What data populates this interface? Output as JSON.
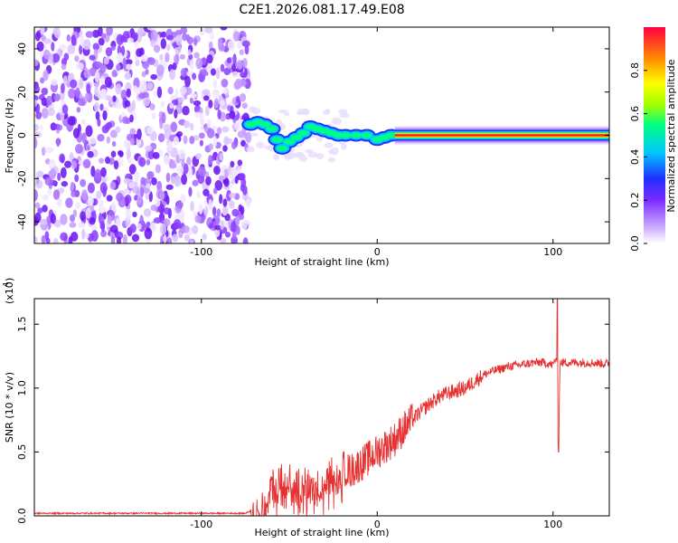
{
  "title": "C2E1.2026.081.17.49.E08",
  "spectrogram": {
    "xlabel": "Height of straight line (km)",
    "ylabel": "Frequency (Hz)",
    "xlim": [
      -195,
      132
    ],
    "ylim": [
      -50,
      50
    ],
    "x_ticks": [
      -100,
      0,
      100
    ],
    "y_ticks": [
      -40,
      -20,
      0,
      20,
      40
    ],
    "noise_region_x": [
      -195,
      -73
    ],
    "ridge_start_x": -73,
    "ridge_freq_hz": 0,
    "colorbar": {
      "label": "Normalized spectral amplitude",
      "ticks": [
        0.0,
        0.2,
        0.4,
        0.6,
        0.8
      ],
      "range": [
        0,
        1
      ]
    }
  },
  "chart_data": {
    "type": "line",
    "title": "C2E1.2026.081.17.49.E08",
    "xlabel": "Height of straight line (km)",
    "ylabel": "SNR (10 * v/v)",
    "y_multiplier_label": "(x10",
    "y_multiplier_exp": "4",
    "xlim": [
      -195,
      132
    ],
    "ylim": [
      0,
      1.7
    ],
    "x_ticks": [
      -100,
      0,
      100
    ],
    "y_ticks": [
      0.0,
      0.5,
      1.0,
      1.5
    ],
    "series": [
      {
        "name": "SNR",
        "color": "#e83030",
        "x": [
          -195,
          -150,
          -100,
          -75,
          -70,
          -65,
          -60,
          -55,
          -50,
          -45,
          -40,
          -35,
          -30,
          -25,
          -20,
          -15,
          -10,
          -5,
          0,
          5,
          10,
          15,
          20,
          25,
          30,
          35,
          40,
          45,
          50,
          55,
          60,
          65,
          70,
          75,
          80,
          85,
          90,
          95,
          100,
          102,
          103,
          104,
          106,
          110,
          120,
          132
        ],
        "y": [
          0.02,
          0.02,
          0.02,
          0.02,
          0.05,
          0.12,
          0.25,
          0.3,
          0.28,
          0.25,
          0.25,
          0.22,
          0.3,
          0.35,
          0.38,
          0.35,
          0.4,
          0.45,
          0.5,
          0.55,
          0.6,
          0.68,
          0.75,
          0.82,
          0.88,
          0.93,
          0.96,
          0.98,
          1.0,
          1.05,
          1.1,
          1.13,
          1.15,
          1.17,
          1.18,
          1.19,
          1.2,
          1.2,
          1.18,
          1.25,
          0.5,
          1.2,
          1.2,
          1.2,
          1.2,
          1.19
        ]
      }
    ]
  },
  "colors": {
    "ridge": "#ff2020",
    "noise": "#8a3cff",
    "line": "#e83030"
  }
}
